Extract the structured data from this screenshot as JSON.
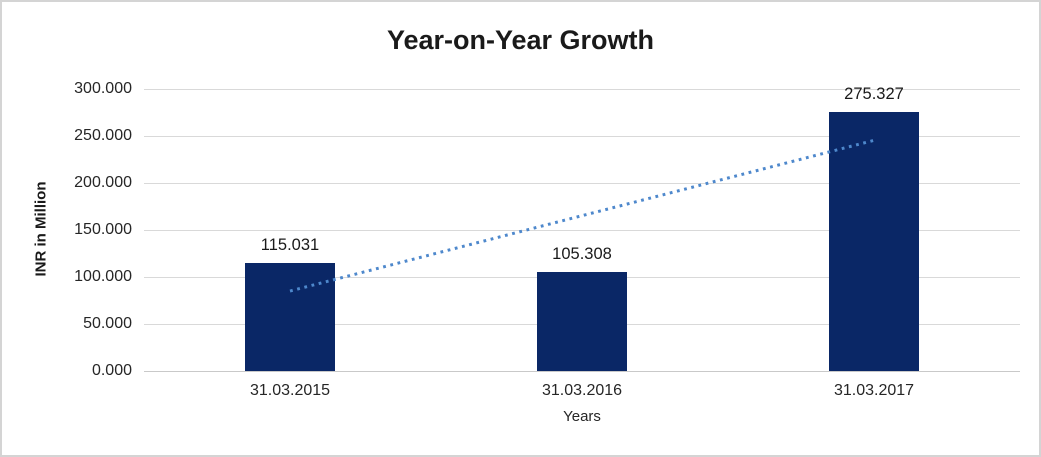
{
  "page": {
    "background": "#FFFFFF",
    "border_color": "#D4D4D4"
  },
  "chart_data": {
    "type": "bar",
    "title": "Year-on-Year Growth",
    "xlabel": "Years",
    "ylabel": "INR in Million",
    "categories": [
      "31.03.2015",
      "31.03.2016",
      "31.03.2017"
    ],
    "values": [
      115.031,
      105.308,
      275.327
    ],
    "value_labels": [
      "115.031",
      "105.308",
      "275.327"
    ],
    "ylim": [
      0,
      300
    ],
    "y_ticks": [
      {
        "value": 0,
        "label": "0.000"
      },
      {
        "value": 50,
        "label": "50.000"
      },
      {
        "value": 100,
        "label": "100.000"
      },
      {
        "value": 150,
        "label": "150.000"
      },
      {
        "value": 200,
        "label": "200.000"
      },
      {
        "value": 250,
        "label": "250.000"
      },
      {
        "value": 300,
        "label": "300.000"
      }
    ],
    "grid": "horizontal",
    "legend": "none",
    "trendline": {
      "type": "linear",
      "style": "dotted"
    },
    "colors": {
      "bar": "#0A2766",
      "trendline": "#4E88CC",
      "gridline": "#D9D9D9",
      "baseline": "#C9C9C9",
      "text": "#1A1A1A"
    }
  }
}
